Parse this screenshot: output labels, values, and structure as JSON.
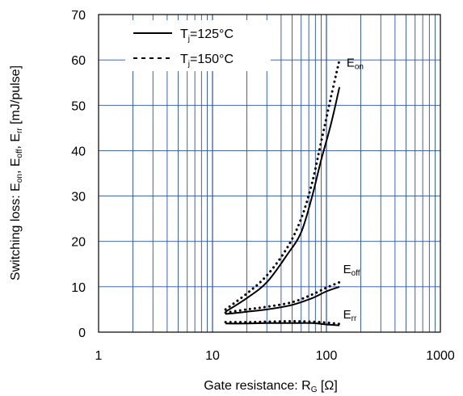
{
  "chart_data": {
    "type": "line",
    "title": "",
    "xscale": "log",
    "xlim": [
      1,
      1000
    ],
    "ylim": [
      0,
      70
    ],
    "grid": true,
    "legend_position": "top-left",
    "xlabel": {
      "main": "Gate resistance: R",
      "sub": "G",
      "tail": " [Ω]"
    },
    "ylabel": "Switching loss: Eon, Eoff, Err [mJ/pulse]",
    "ylabel_parts": [
      {
        "t": "Switching loss: E",
        "sub": false
      },
      {
        "t": "on",
        "sub": true
      },
      {
        "t": ", E",
        "sub": false
      },
      {
        "t": "off",
        "sub": true
      },
      {
        "t": ", E",
        "sub": false
      },
      {
        "t": "rr",
        "sub": true
      },
      {
        "t": " [mJ/pulse]",
        "sub": false
      }
    ],
    "xticks": [
      1,
      10,
      100,
      1000
    ],
    "xtick_labels": [
      "1",
      "10",
      "100",
      "1000"
    ],
    "yticks": [
      0,
      10,
      20,
      30,
      40,
      50,
      60,
      70
    ],
    "ytick_labels": [
      "0",
      "10",
      "20",
      "30",
      "40",
      "50",
      "60",
      "70"
    ],
    "legend": [
      {
        "main": "T",
        "sub": "j",
        "tail": "=125°C",
        "style": "solid"
      },
      {
        "main": "T",
        "sub": "j",
        "tail": "=150°C",
        "style": "dotted"
      }
    ],
    "series": [
      {
        "curve": "Eon",
        "condition": "Tj=125°C",
        "style": "solid",
        "x": [
          13,
          20,
          30,
          45,
          60,
          75,
          90,
          110,
          130
        ],
        "y": [
          4.5,
          7.5,
          11,
          17,
          22,
          30,
          38,
          46,
          54
        ]
      },
      {
        "curve": "Eon",
        "condition": "Tj=150°C",
        "style": "dotted",
        "x": [
          13,
          20,
          30,
          45,
          60,
          75,
          90,
          110,
          130
        ],
        "y": [
          5,
          8.5,
          12.5,
          18.5,
          25,
          33,
          42,
          52,
          60
        ]
      },
      {
        "curve": "Eoff",
        "condition": "Tj=125°C",
        "style": "solid",
        "x": [
          13,
          20,
          30,
          50,
          75,
          100,
          130
        ],
        "y": [
          4,
          4.5,
          5,
          6,
          7.5,
          9,
          10
        ]
      },
      {
        "curve": "Eoff",
        "condition": "Tj=150°C",
        "style": "dotted",
        "x": [
          13,
          20,
          30,
          50,
          75,
          100,
          130
        ],
        "y": [
          4.3,
          5,
          5.6,
          6.6,
          8.3,
          9.8,
          11
        ]
      },
      {
        "curve": "Err",
        "condition": "Tj=125°C",
        "style": "solid",
        "x": [
          13,
          20,
          30,
          50,
          75,
          100,
          130
        ],
        "y": [
          1.9,
          1.9,
          2,
          2,
          2,
          1.7,
          1.5
        ]
      },
      {
        "curve": "Err",
        "condition": "Tj=150°C",
        "style": "dotted",
        "x": [
          13,
          20,
          30,
          50,
          75,
          100,
          130
        ],
        "y": [
          2.2,
          2.2,
          2.3,
          2.4,
          2.3,
          2.1,
          1.8
        ]
      }
    ],
    "curve_labels": [
      {
        "id": "Eon",
        "main": "E",
        "sub": "on",
        "at_x": 150,
        "at_y": 58.5
      },
      {
        "id": "Eoff",
        "main": "E",
        "sub": "off",
        "at_x": 140,
        "at_y": 13
      },
      {
        "id": "Err",
        "main": "E",
        "sub": "rr",
        "at_x": 140,
        "at_y": 3
      }
    ],
    "colors": {
      "grid": "#2952a3",
      "frame": "#000000",
      "lines": "#000000"
    }
  }
}
